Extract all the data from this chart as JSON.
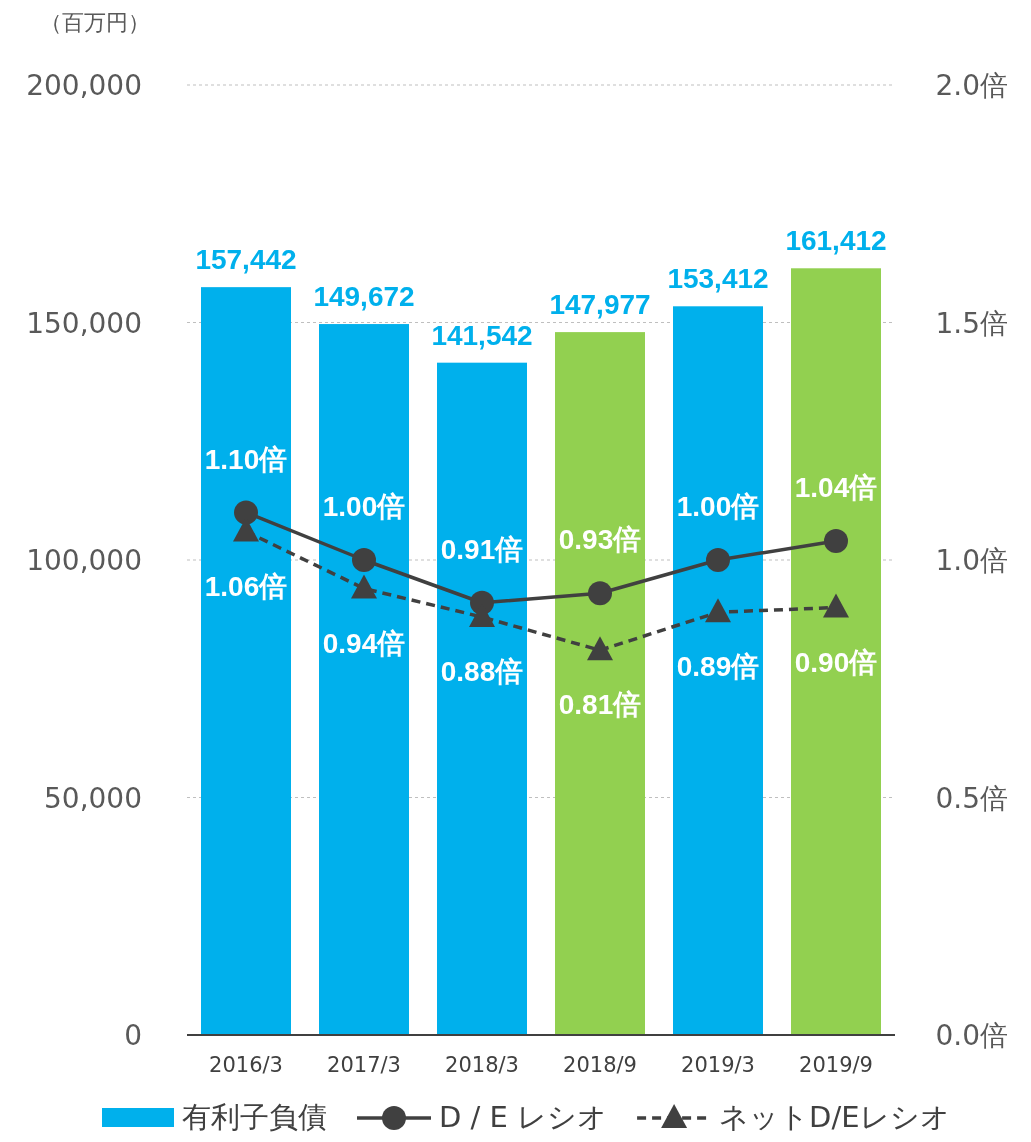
{
  "chart_data": {
    "type": "bar",
    "ylabel": "（百万円）",
    "categories": [
      "2016/3",
      "2017/3",
      "2018/3",
      "2018/9",
      "2019/3",
      "2019/9"
    ],
    "series": [
      {
        "name": "有利子負債",
        "color": "#00b0ec",
        "colors": [
          "#00b0ec",
          "#00b0ec",
          "#00b0ec",
          "#92d050",
          "#00b0ec",
          "#92d050"
        ],
        "values": [
          157442,
          149672,
          141542,
          147977,
          153412,
          161412
        ],
        "value_labels": [
          "157,442",
          "149,672",
          "141,542",
          "147,977",
          "153,412",
          "161,412"
        ]
      },
      {
        "name": "D / E レシオ",
        "type": "line",
        "axis": "y2",
        "color": "#404040",
        "marker": "circle",
        "line_style": "solid",
        "values": [
          1.1,
          1.0,
          0.91,
          0.93,
          1.0,
          1.04
        ],
        "value_labels": [
          "1.10倍",
          "1.00倍",
          "0.91倍",
          "0.93倍",
          "1.00倍",
          "1.04倍"
        ]
      },
      {
        "name": "ネットD/Eレシオ",
        "type": "line",
        "axis": "y2",
        "color": "#404040",
        "marker": "triangle",
        "line_style": "dashed",
        "values": [
          1.06,
          0.94,
          0.88,
          0.81,
          0.89,
          0.9
        ],
        "value_labels": [
          "1.06倍",
          "0.94倍",
          "0.88倍",
          "0.81倍",
          "0.89倍",
          "0.90倍"
        ]
      }
    ],
    "ylim": [
      0,
      200000
    ],
    "yticks": [
      0,
      {
        "value": 50000,
        "label": "50,000"
      },
      {
        "value": 100000,
        "label": "100,000"
      },
      {
        "value": 150000,
        "label": "150,000"
      },
      {
        "value": 200000,
        "label": "200,000"
      }
    ],
    "y2lim": [
      0,
      2.0
    ],
    "y2ticks": [
      {
        "value": 0,
        "label": "0.0倍"
      },
      {
        "value": 0.5,
        "label": "0.5倍"
      },
      {
        "value": 1.0,
        "label": "1.0倍"
      },
      {
        "value": 1.5,
        "label": "1.5倍"
      },
      {
        "value": 2.0,
        "label": "2.0倍"
      }
    ],
    "grid": "y",
    "legend": "bottom"
  }
}
